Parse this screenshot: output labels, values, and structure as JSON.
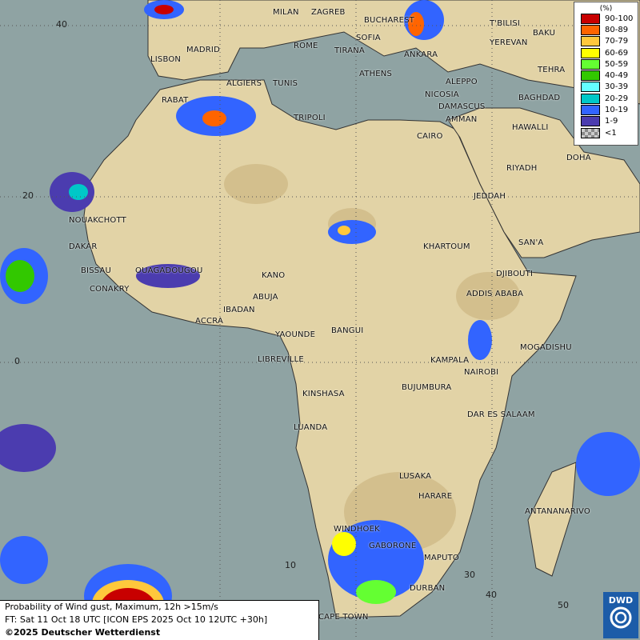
{
  "legend": {
    "unit": "(%)",
    "items": [
      {
        "label": "90-100",
        "color": "#c80000"
      },
      {
        "label": "80-89",
        "color": "#ff6400"
      },
      {
        "label": "70-79",
        "color": "#ffc83c"
      },
      {
        "label": "60-69",
        "color": "#ffff00"
      },
      {
        "label": "50-59",
        "color": "#64ff32"
      },
      {
        "label": "40-49",
        "color": "#32c800"
      },
      {
        "label": "30-39",
        "color": "#64ffff"
      },
      {
        "label": "20-29",
        "color": "#00c8c8"
      },
      {
        "label": "10-19",
        "color": "#3264ff"
      },
      {
        "label": "1-9",
        "color": "#4b3caf"
      },
      {
        "label": "<1",
        "color": "#aaaaaa"
      }
    ]
  },
  "caption": {
    "line1": "Probability of Wind gust, Maximum, 12h >15m/s",
    "line2": "FT: Sat 11 Oct 18 UTC [ICON EPS 2025 Oct 10 12UTC +30h]",
    "line3": "©2025 Deutscher Wetterdienst"
  },
  "logo": {
    "text": "DWD"
  },
  "grid_labels": {
    "lat40": "40",
    "lat20": "20",
    "lat0": "0",
    "lon10": "10",
    "lon30": "30",
    "lon40": "40",
    "lon50": "50"
  },
  "cities": [
    "MILAN",
    "ZAGREB",
    "BUCHAREST",
    "T'BILISI",
    "BAKU",
    "MADRID",
    "ROME",
    "SOFIA",
    "YEREVAN",
    "LISBON",
    "TIRANA",
    "ANKARA",
    "TEHRA",
    "ATHENS",
    "ALGIERS",
    "TUNIS",
    "ALEPPO",
    "RABAT",
    "NICOSIA",
    "BAGHDAD",
    "DAMASCUS",
    "TRIPOLI",
    "AMMAN",
    "CAIRO",
    "HAWALLI",
    "DOHA",
    "RIYADH",
    "NOUAKCHOTT",
    "JEDDAH",
    "KHARTOUM",
    "DAKAR",
    "SAN'A",
    "BISSAU",
    "OUAGADOUGOU",
    "KANO",
    "DJIBOUTI",
    "CONAKRY",
    "ABUJA",
    "ADDIS ABABA",
    "IBADAN",
    "ACCRA",
    "YAOUNDE",
    "BANGUI",
    "MOGADISHU",
    "LIBREVILLE",
    "KAMPALA",
    "NAIROBI",
    "KINSHASA",
    "BUJUMBURA",
    "DAR ES SALAAM",
    "LUANDA",
    "LUSAKA",
    "HARARE",
    "ANTANANARIVO",
    "WINDHOEK",
    "GABORONE",
    "MAPUTO",
    "DURBAN",
    "CAPE TOWN"
  ]
}
